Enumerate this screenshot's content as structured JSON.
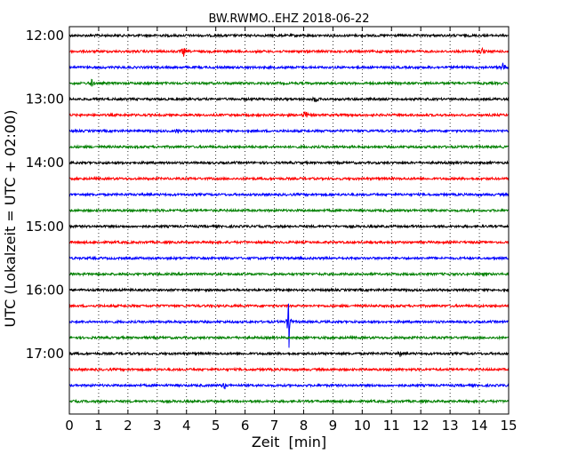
{
  "chart_data": {
    "type": "line",
    "title": "BW.RWMO..EHZ 2018-06-22",
    "xlabel": "Zeit  [min]",
    "ylabel": "UTC (Lokalzeit = UTC + 02:00)",
    "xlim": [
      0,
      15
    ],
    "x_ticks": [
      "0",
      "1",
      "2",
      "3",
      "4",
      "5",
      "6",
      "7",
      "8",
      "9",
      "10",
      "11",
      "12",
      "13",
      "14",
      "15"
    ],
    "y_ticks": [
      "12:00",
      "13:00",
      "14:00",
      "15:00",
      "16:00",
      "17:00"
    ],
    "grid_x": true,
    "series_colors": [
      "#000000",
      "#ff0000",
      "#0000ff",
      "#008000"
    ],
    "trace_count": 24,
    "events": [
      {
        "trace": 1,
        "minute": 3.9,
        "amp": 0.35
      },
      {
        "trace": 1,
        "minute": 14.1,
        "amp": 0.3
      },
      {
        "trace": 2,
        "minute": 14.8,
        "amp": 0.4
      },
      {
        "trace": 3,
        "minute": 0.75,
        "amp": 0.3
      },
      {
        "trace": 4,
        "minute": 8.4,
        "amp": 0.3
      },
      {
        "trace": 5,
        "minute": 8.05,
        "amp": 0.45
      },
      {
        "trace": 6,
        "minute": 3.7,
        "amp": 0.2
      },
      {
        "trace": 18,
        "minute": 7.5,
        "amp": 1.6
      },
      {
        "trace": 20,
        "minute": 11.3,
        "amp": 0.15
      },
      {
        "trace": 22,
        "minute": 5.3,
        "amp": 0.25
      }
    ]
  }
}
